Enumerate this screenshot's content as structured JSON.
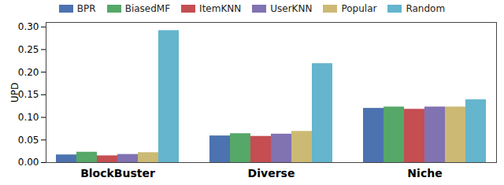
{
  "chart_data": {
    "type": "bar",
    "y_label": "UPD",
    "categories": [
      "BlockBuster",
      "Diverse",
      "Niche"
    ],
    "series": [
      {
        "name": "BPR",
        "color": "#4c72b0",
        "values": [
          0.017,
          0.059,
          0.12
        ]
      },
      {
        "name": "BiasedMF",
        "color": "#55a868",
        "values": [
          0.023,
          0.064,
          0.123
        ]
      },
      {
        "name": "ItemKNN",
        "color": "#c44e52",
        "values": [
          0.015,
          0.058,
          0.118
        ]
      },
      {
        "name": "UserKNN",
        "color": "#8172b2",
        "values": [
          0.018,
          0.063,
          0.123
        ]
      },
      {
        "name": "Popular",
        "color": "#ccb974",
        "values": [
          0.022,
          0.069,
          0.123
        ]
      },
      {
        "name": "Random",
        "color": "#64b5cd",
        "values": [
          0.292,
          0.219,
          0.139
        ]
      }
    ],
    "ylim": [
      0,
      0.31
    ],
    "yticks": [
      {
        "value": 0,
        "label": "0.00"
      },
      {
        "value": 0.05,
        "label": "0.05"
      },
      {
        "value": 0.1,
        "label": "0.10"
      },
      {
        "value": 0.15,
        "label": "0.15"
      },
      {
        "value": 0.2,
        "label": "0.20"
      },
      {
        "value": 0.25,
        "label": "0.25"
      },
      {
        "value": 0.3,
        "label": "0.30"
      }
    ],
    "grid": false,
    "legend": "top"
  }
}
